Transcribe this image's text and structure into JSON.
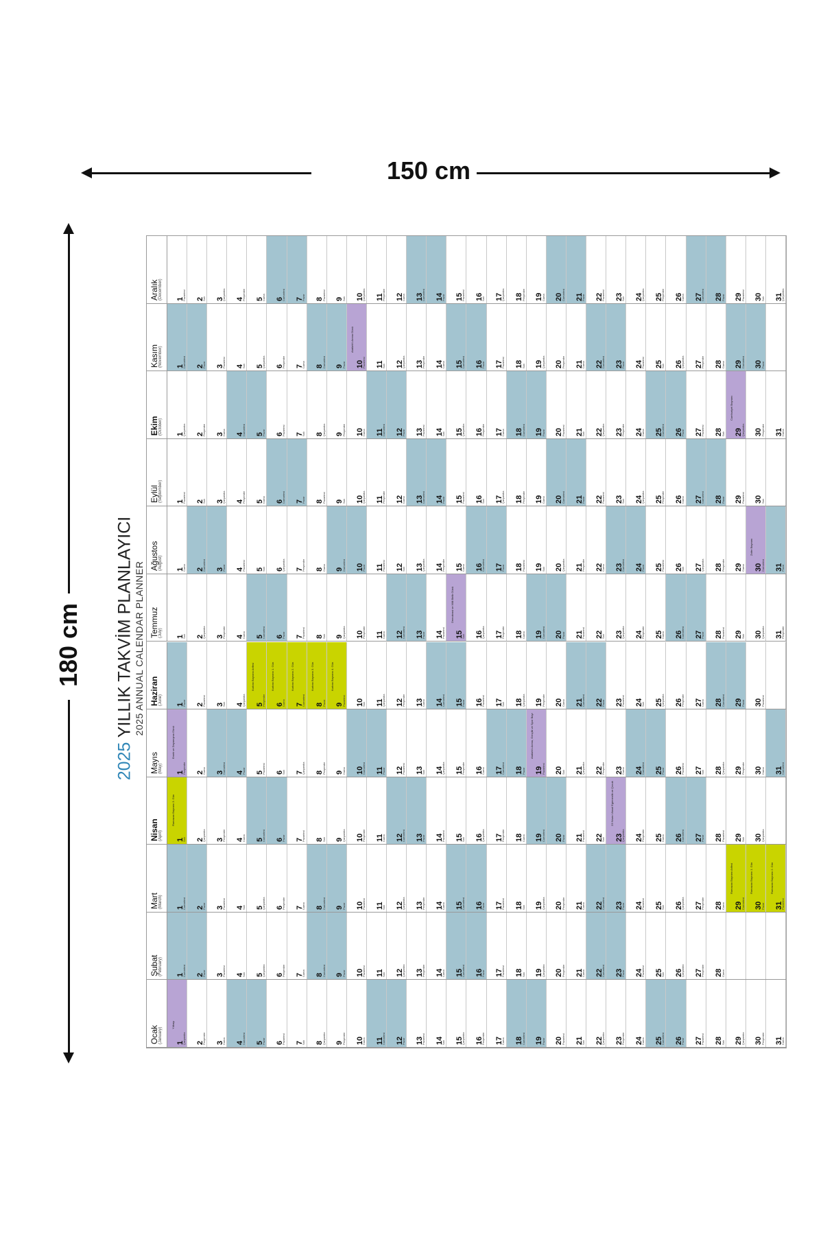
{
  "dimensions": {
    "width_label": "150 cm",
    "height_label": "180 cm"
  },
  "planner": {
    "title_year": "2025",
    "title_main": "YILLIK TAKVİM PLANLAYICI",
    "subtitle": "2025 ANNUAL CALENDAR PLANNER",
    "colors": {
      "weekend": "#a3c4d0",
      "holiday": "#c9d400",
      "special": "#b8a4d4",
      "accent": "#2f86b7"
    },
    "day_abbrev": {
      "Pzt": "Pazartesi",
      "Sal": "Salı",
      "Çar": "Çarşamba",
      "Per": "Perşembe",
      "Cum": "Cuma",
      "Cmt": "Cumartesi",
      "Paz": "Pazar"
    },
    "months": [
      {
        "name": "Ocak",
        "en": "(January)",
        "bold": false,
        "icon": "snowman-icon",
        "start_weekday": 2,
        "days": 31,
        "special": [
          1
        ],
        "holiday": [],
        "notes": {
          "1": "Yılbaşı"
        }
      },
      {
        "name": "Şubat",
        "en": "(February)",
        "bold": false,
        "icon": "heart-icon",
        "start_weekday": 5,
        "days": 28,
        "special": [],
        "holiday": [],
        "notes": {}
      },
      {
        "name": "Mart",
        "en": "(March)",
        "bold": false,
        "icon": "balloons-icon",
        "start_weekday": 5,
        "days": 31,
        "special": [],
        "holiday": [
          29,
          30,
          31
        ],
        "notes": {
          "29": "Ramazan Bayramı Arifesi",
          "30": "Ramazan Bayramı 1. Gün",
          "31": "Ramazan Bayramı 2. Gün"
        }
      },
      {
        "name": "Nisan",
        "en": "(April)",
        "bold": true,
        "icon": "umbrella-icon",
        "start_weekday": 1,
        "days": 30,
        "special": [
          23
        ],
        "holiday": [
          1
        ],
        "notes": {
          "1": "Ramazan Bayramı 3. Gün",
          "23": "23 Nisan Ulusal Egemenlik ve Çocuk Bayramı"
        }
      },
      {
        "name": "Mayıs",
        "en": "(May)",
        "bold": false,
        "icon": "tree-icon",
        "start_weekday": 3,
        "days": 31,
        "special": [
          1,
          19
        ],
        "holiday": [],
        "notes": {
          "1": "Emek ve Dayanışma Günü",
          "19": "Atatürk'ü Anma, Gençlik ve Spor Bayramı"
        }
      },
      {
        "name": "Haziran",
        "en": "(June)",
        "bold": true,
        "icon": "graduation-cap-icon",
        "start_weekday": 6,
        "days": 30,
        "special": [],
        "holiday": [
          5,
          6,
          7,
          8,
          9
        ],
        "notes": {
          "5": "Kurban Bayramı Arifesi",
          "6": "Kurban Bayramı 1. Gün",
          "7": "Kurban Bayramı 2. Gün",
          "8": "Kurban Bayramı 3. Gün",
          "9": "Kurban Bayramı 4. Gün"
        }
      },
      {
        "name": "Temmuz",
        "en": "(July)",
        "bold": false,
        "icon": "ice-cream-icon",
        "start_weekday": 1,
        "days": 31,
        "special": [
          15
        ],
        "holiday": [],
        "notes": {
          "15": "Demokrasi ve Milli Birlik Günü"
        }
      },
      {
        "name": "Ağustos",
        "en": "(August)",
        "bold": false,
        "icon": "sun-icon",
        "start_weekday": 4,
        "days": 31,
        "special": [
          30
        ],
        "holiday": [],
        "notes": {
          "30": "Zafer Bayramı"
        }
      },
      {
        "name": "Eylül",
        "en": "(September)",
        "bold": false,
        "icon": "clock-icon",
        "start_weekday": 0,
        "days": 30,
        "special": [],
        "holiday": [],
        "notes": {}
      },
      {
        "name": "Ekim",
        "en": "(October)",
        "bold": true,
        "icon": "maple-leaf-icon",
        "start_weekday": 2,
        "days": 31,
        "special": [
          29
        ],
        "holiday": [],
        "notes": {
          "29": "Cumhuriyet Bayramı"
        }
      },
      {
        "name": "Kasım",
        "en": "(November)",
        "bold": false,
        "icon": "scarf-icon",
        "start_weekday": 5,
        "days": 30,
        "special": [
          10
        ],
        "holiday": [],
        "notes": {
          "10": "Atatürk'ü Anma Günü"
        }
      },
      {
        "name": "Aralık",
        "en": "(December)",
        "bold": false,
        "icon": "snowflake-icon",
        "start_weekday": 0,
        "days": 31,
        "special": [],
        "holiday": [],
        "notes": {}
      }
    ]
  }
}
